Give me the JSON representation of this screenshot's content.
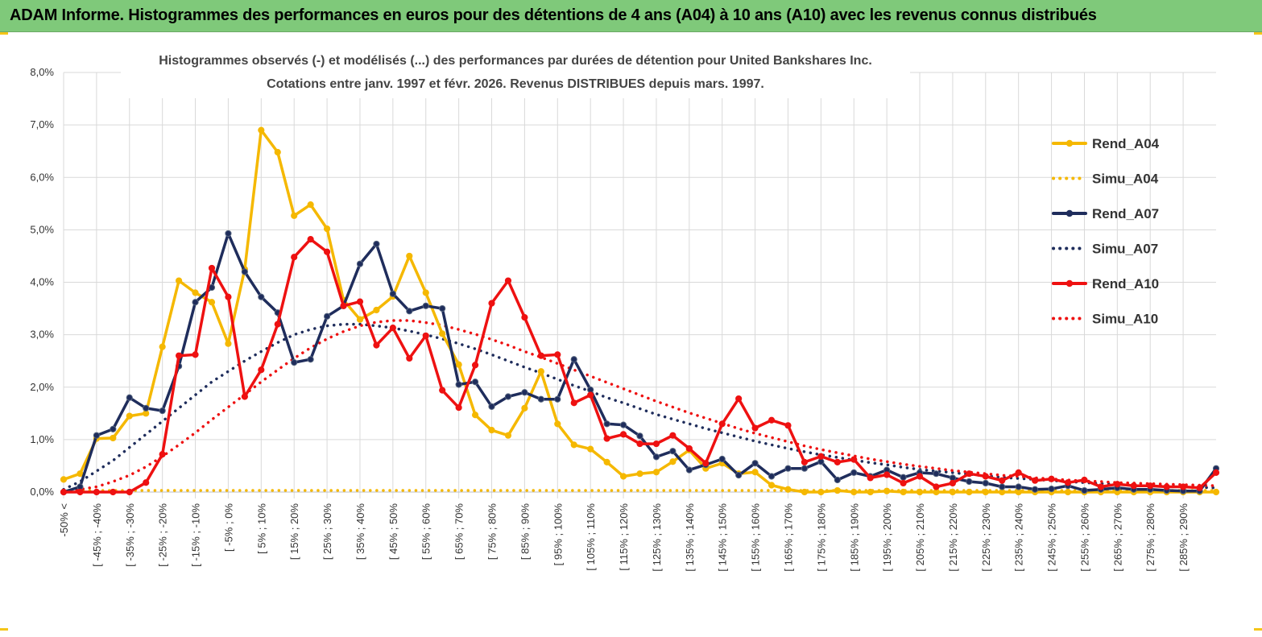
{
  "banner": {
    "title": "ADAM Informe. Histogrammes des performances en euros pour des détentions de 4 ans (A04) à 10 ans (A10) avec les revenus connus distribués"
  },
  "colors": {
    "banner_bg": "#7fc97a",
    "accent_corner": "#f5c518",
    "A04": "#f5b800",
    "A07": "#1f2d5c",
    "A10": "#ee1111",
    "grid": "#d9d9d9"
  },
  "chart_data": {
    "type": "line",
    "title_line1": "Histogrammes observés (-) et modélisés (...) des performances par durées de détention pour United Bankshares Inc.",
    "title_line2": "Cotations entre janv. 1997 et févr.  2026. Revenus DISTRIBUES depuis mars. 1997.",
    "ylim": [
      0,
      8
    ],
    "y_ticks": [
      "0,0%",
      "1,0%",
      "2,0%",
      "3,0%",
      "4,0%",
      "5,0%",
      "6,0%",
      "7,0%",
      "8,0%"
    ],
    "grid": true,
    "legend_position": "right",
    "categories": [
      "-50% <",
      "[ -50% ; -45%",
      "[ -45% ; -40%",
      "[ -40% ; -35%",
      "[ -35% ; -30%",
      "[ -30% ; -25%",
      "[ -25% ; -20%",
      "[ -20% ; -15%",
      "[ -15% ; -10%",
      "[ -10% ; -5%",
      "[ -5% ; 0%",
      "[ 0% ; 5%",
      "[ 5% ; 10%",
      "[ 10% ; 15%",
      "[ 15% ; 20%",
      "[ 20% ; 25%",
      "[ 25% ; 30%",
      "[ 30% ; 35%",
      "[ 35% ; 40%",
      "[ 40% ; 45%",
      "[ 45% ; 50%",
      "[ 50% ; 55%",
      "[ 55% ; 60%",
      "[ 60% ; 65%",
      "[ 65% ; 70%",
      "[ 70% ; 75%",
      "[ 75% ; 80%",
      "[ 80% ; 85%",
      "[ 85% ; 90%",
      "[ 90% ; 95%",
      "[ 95% ; 100%",
      "[ 100% ; 105%",
      "[ 105% ; 110%",
      "[ 110% ; 115%",
      "[ 115% ; 120%",
      "[ 120% ; 125%",
      "[ 125% ; 130%",
      "[ 130% ; 135%",
      "[ 135% ; 140%",
      "[ 140% ; 145%",
      "[ 145% ; 150%",
      "[ 150% ; 155%",
      "[ 155% ; 160%",
      "[ 160% ; 165%",
      "[ 165% ; 170%",
      "[ 170% ; 175%",
      "[ 175% ; 180%",
      "[ 180% ; 185%",
      "[ 185% ; 190%",
      "[ 190% ; 195%",
      "[ 195% ; 200%",
      "[ 200% ; 205%",
      "[ 205% ; 210%",
      "[ 210% ; 215%",
      "[ 215% ; 220%",
      "[ 220% ; 225%",
      "[ 225% ; 230%",
      "[ 230% ; 235%",
      "[ 235% ; 240%",
      "[ 240% ; 245%",
      "[ 245% ; 250%",
      "[ 250% ; 255%",
      "[ 255% ; 260%",
      "[ 260% ; 265%",
      "[ 265% ; 270%",
      "[ 270% ; 275%",
      "[ 275% ; 280%",
      "[ 280% ; 285%",
      "[ 285% ; 290%",
      "[ 290% ; 295%",
      "[ 295% ; 300%"
    ],
    "x_tick_labels": [
      "-50% <",
      "[ -45% ; -40%",
      "[ -35% ; -30%",
      "[ -25% ; -20%",
      "[ -15% ; -10%",
      "[ -5% ; 0%",
      "[ 5% ; 10%",
      "[ 15% ; 20%",
      "[ 25% ; 30%",
      "[ 35% ; 40%",
      "[ 45% ; 50%",
      "[ 55% ; 60%",
      "[ 65% ; 70%",
      "[ 75% ; 80%",
      "[ 85% ; 90%",
      "[ 95% ; 100%",
      "[ 105% ; 110%",
      "[ 115% ; 120%",
      "[ 125% ; 130%",
      "[ 135% ; 140%",
      "[ 145% ; 150%",
      "[ 155% ; 160%",
      "[ 165% ; 170%",
      "[ 175% ; 180%",
      "[ 185% ; 190%",
      "[ 195% ; 200%",
      "[ 205% ; 210%",
      "[ 215% ; 220%",
      "[ 225% ; 230%",
      "[ 235% ; 240%",
      "[ 245% ; 250%",
      "[ 255% ; 260%",
      "[ 265% ; 270%",
      "[ 275% ; 280%",
      "[ 285% ; 290%"
    ],
    "series": [
      {
        "name": "Rend_A04",
        "style": "solid",
        "marker": true,
        "color": "#f5b800",
        "values": [
          0.24,
          0.35,
          1.02,
          1.03,
          1.45,
          1.5,
          2.77,
          4.03,
          3.8,
          3.62,
          2.83,
          4.25,
          6.9,
          6.48,
          5.27,
          5.48,
          5.02,
          3.66,
          3.29,
          3.47,
          3.73,
          4.5,
          3.8,
          3.02,
          2.43,
          1.47,
          1.18,
          1.08,
          1.6,
          2.3,
          1.3,
          0.9,
          0.82,
          0.57,
          0.3,
          0.35,
          0.38,
          0.58,
          0.8,
          0.45,
          0.55,
          0.35,
          0.38,
          0.13,
          0.05,
          0.0,
          0.0,
          0.03,
          0.0,
          0.0,
          0.02,
          0.0,
          0.0,
          0.0,
          0.0,
          0.0,
          0.0,
          0.0,
          0.0,
          0.0,
          0.0,
          0.0,
          0.0,
          0.0,
          0.0,
          0.0,
          0.0,
          0.0,
          0.0,
          0.0,
          0.0
        ]
      },
      {
        "name": "Simu_A04",
        "style": "dotted",
        "marker": false,
        "color": "#f5b800",
        "values": [
          0.03,
          0.03,
          0.03,
          0.03,
          0.03,
          0.03,
          0.03,
          0.03,
          0.03,
          0.03,
          0.03,
          0.03,
          0.03,
          0.03,
          0.03,
          0.03,
          0.03,
          0.03,
          0.03,
          0.03,
          0.03,
          0.03,
          0.03,
          0.03,
          0.03,
          0.03,
          0.03,
          0.03,
          0.03,
          0.03,
          0.03,
          0.03,
          0.03,
          0.03,
          0.03,
          0.03,
          0.03,
          0.03,
          0.03,
          0.03,
          0.03,
          0.03,
          0.03,
          0.03,
          0.03,
          0.03,
          0.03,
          0.03,
          0.03,
          0.03,
          0.03,
          0.03,
          0.03,
          0.03,
          0.03,
          0.03,
          0.03,
          0.03,
          0.03,
          0.03,
          0.03,
          0.03,
          0.03,
          0.03,
          0.03,
          0.03,
          0.03,
          0.03,
          0.03,
          0.03,
          0.03
        ]
      },
      {
        "name": "Rend_A07",
        "style": "solid",
        "marker": true,
        "color": "#1f2d5c",
        "values": [
          0.0,
          0.1,
          1.08,
          1.2,
          1.8,
          1.6,
          1.55,
          2.4,
          3.62,
          3.9,
          4.93,
          4.2,
          3.72,
          3.42,
          2.47,
          2.53,
          3.35,
          3.55,
          4.35,
          4.73,
          3.78,
          3.45,
          3.55,
          3.5,
          2.05,
          2.1,
          1.63,
          1.82,
          1.9,
          1.77,
          1.77,
          2.53,
          1.95,
          1.3,
          1.28,
          1.07,
          0.67,
          0.78,
          0.42,
          0.52,
          0.63,
          0.32,
          0.55,
          0.3,
          0.45,
          0.45,
          0.58,
          0.23,
          0.37,
          0.3,
          0.42,
          0.28,
          0.37,
          0.35,
          0.27,
          0.2,
          0.17,
          0.1,
          0.1,
          0.05,
          0.06,
          0.12,
          0.03,
          0.05,
          0.08,
          0.05,
          0.05,
          0.03,
          0.02,
          0.02,
          0.45
        ]
      },
      {
        "name": "Simu_A07",
        "style": "dotted",
        "marker": false,
        "color": "#1f2d5c",
        "values": [
          0.05,
          0.2,
          0.4,
          0.6,
          0.85,
          1.1,
          1.35,
          1.6,
          1.85,
          2.1,
          2.3,
          2.5,
          2.68,
          2.85,
          3.0,
          3.1,
          3.17,
          3.2,
          3.2,
          3.17,
          3.13,
          3.07,
          3.0,
          2.92,
          2.83,
          2.73,
          2.62,
          2.5,
          2.38,
          2.27,
          2.15,
          2.03,
          1.92,
          1.8,
          1.7,
          1.59,
          1.48,
          1.39,
          1.3,
          1.21,
          1.13,
          1.05,
          0.97,
          0.9,
          0.83,
          0.77,
          0.71,
          0.66,
          0.61,
          0.56,
          0.52,
          0.47,
          0.43,
          0.4,
          0.37,
          0.34,
          0.31,
          0.28,
          0.26,
          0.24,
          0.22,
          0.2,
          0.18,
          0.16,
          0.15,
          0.13,
          0.12,
          0.11,
          0.1,
          0.09,
          0.08
        ]
      },
      {
        "name": "Rend_A10",
        "style": "solid",
        "marker": true,
        "color": "#ee1111",
        "values": [
          0.0,
          0.0,
          0.0,
          0.0,
          0.0,
          0.18,
          0.72,
          2.6,
          2.62,
          4.27,
          3.72,
          1.82,
          2.33,
          3.2,
          4.48,
          4.82,
          4.58,
          3.55,
          3.63,
          2.8,
          3.13,
          2.55,
          2.98,
          1.94,
          1.61,
          2.42,
          3.6,
          4.03,
          3.33,
          2.6,
          2.62,
          1.7,
          1.85,
          1.02,
          1.1,
          0.92,
          0.92,
          1.08,
          0.83,
          0.55,
          1.3,
          1.78,
          1.22,
          1.37,
          1.27,
          0.57,
          0.68,
          0.57,
          0.62,
          0.27,
          0.33,
          0.17,
          0.3,
          0.1,
          0.17,
          0.35,
          0.3,
          0.22,
          0.37,
          0.22,
          0.25,
          0.18,
          0.23,
          0.1,
          0.15,
          0.12,
          0.12,
          0.1,
          0.1,
          0.08,
          0.37
        ]
      },
      {
        "name": "Simu_A10",
        "style": "dotted",
        "marker": false,
        "color": "#ee1111",
        "values": [
          0.02,
          0.05,
          0.1,
          0.2,
          0.32,
          0.48,
          0.68,
          0.9,
          1.13,
          1.38,
          1.62,
          1.86,
          2.1,
          2.33,
          2.55,
          2.75,
          2.92,
          3.06,
          3.17,
          3.24,
          3.27,
          3.27,
          3.23,
          3.18,
          3.1,
          3.01,
          2.91,
          2.8,
          2.68,
          2.57,
          2.45,
          2.33,
          2.21,
          2.09,
          1.97,
          1.85,
          1.73,
          1.62,
          1.51,
          1.41,
          1.31,
          1.21,
          1.12,
          1.04,
          0.96,
          0.88,
          0.81,
          0.75,
          0.69,
          0.63,
          0.58,
          0.53,
          0.49,
          0.45,
          0.41,
          0.38,
          0.35,
          0.32,
          0.3,
          0.27,
          0.25,
          0.23,
          0.21,
          0.2,
          0.18,
          0.17,
          0.16,
          0.15,
          0.14,
          0.13,
          0.12
        ]
      }
    ]
  }
}
